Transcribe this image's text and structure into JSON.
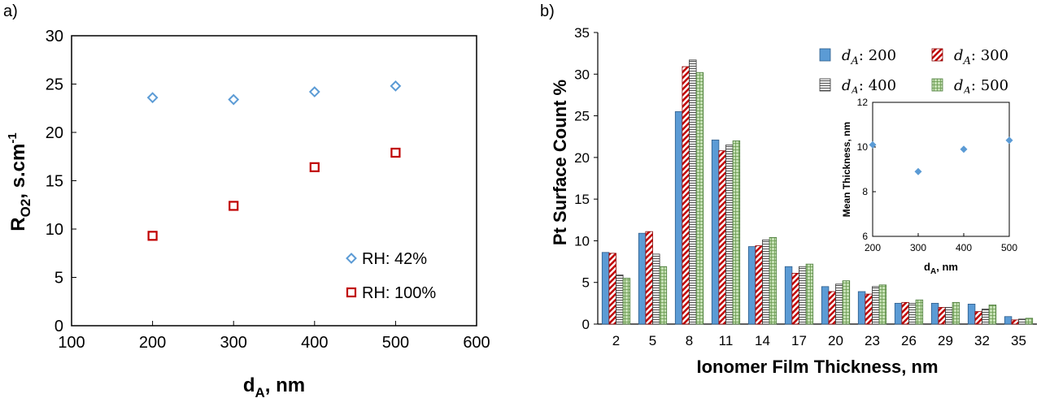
{
  "chart_data": [
    {
      "panel": "a)",
      "type": "scatter",
      "xlabel_main": "d",
      "xlabel_sub": "A",
      "xlabel_rest": ", nm",
      "ylabel_main": "R",
      "ylabel_sub": "O2",
      "ylabel_rest": ", s.cm",
      "ylabel_sup": "-1",
      "xlim": [
        100,
        600
      ],
      "ylim": [
        0,
        30
      ],
      "xticks": [
        100,
        200,
        300,
        400,
        500,
        600
      ],
      "yticks": [
        0,
        5,
        10,
        15,
        20,
        25,
        30
      ],
      "legend_position": "bottom-right",
      "series": [
        {
          "name": "RH: 42%",
          "marker": "diamond",
          "color": "#5B9BD5",
          "x": [
            200,
            300,
            400,
            500
          ],
          "y": [
            23.6,
            23.4,
            24.2,
            24.8
          ]
        },
        {
          "name": "RH: 100%",
          "marker": "square",
          "color": "#C00000",
          "x": [
            200,
            300,
            400,
            500
          ],
          "y": [
            9.3,
            12.4,
            16.4,
            17.9
          ]
        }
      ]
    },
    {
      "panel": "b)",
      "type": "bar",
      "xlabel": "Ionomer Film Thickness, nm",
      "ylabel": "Pt Surface Count %",
      "ylim": [
        0,
        35
      ],
      "yticks": [
        0,
        5,
        10,
        15,
        20,
        25,
        30,
        35
      ],
      "categories": [
        "2",
        "5",
        "8",
        "11",
        "14",
        "17",
        "20",
        "23",
        "26",
        "29",
        "32",
        "35"
      ],
      "legend_position": "top-right",
      "series": [
        {
          "name_main": "d",
          "name_sub": "A",
          "name_rest": ": 200",
          "pattern": "solid-blue",
          "values": [
            8.6,
            10.9,
            25.5,
            22.1,
            9.3,
            6.9,
            4.5,
            3.9,
            2.5,
            2.5,
            2.4,
            0.9
          ]
        },
        {
          "name_main": "d",
          "name_sub": "A",
          "name_rest": ": 300",
          "pattern": "red-diagonal",
          "values": [
            8.5,
            11.1,
            30.9,
            20.8,
            9.4,
            6.1,
            3.9,
            3.6,
            2.6,
            2.0,
            1.5,
            0.5
          ]
        },
        {
          "name_main": "d",
          "name_sub": "A",
          "name_rest": ": 400",
          "pattern": "gray-horizontal",
          "values": [
            5.9,
            8.4,
            31.7,
            21.5,
            10.1,
            6.9,
            4.8,
            4.5,
            2.5,
            2.0,
            1.8,
            0.6
          ]
        },
        {
          "name_main": "d",
          "name_sub": "A",
          "name_rest": ": 500",
          "pattern": "green-grid",
          "values": [
            5.5,
            6.9,
            30.2,
            22.0,
            10.4,
            7.2,
            5.2,
            4.7,
            2.9,
            2.6,
            2.3,
            0.7
          ]
        }
      ],
      "inset": {
        "type": "scatter",
        "xlabel_main": "d",
        "xlabel_sub": "A",
        "xlabel_rest": ", nm",
        "ylabel": "Mean Thickness, nm",
        "xlim": [
          200,
          500
        ],
        "ylim": [
          6,
          12
        ],
        "xticks": [
          200,
          300,
          400,
          500
        ],
        "yticks": [
          6,
          8,
          10,
          12
        ],
        "x": [
          200,
          300,
          400,
          500
        ],
        "y": [
          10.1,
          8.9,
          9.9,
          10.3
        ],
        "color": "#5B9BD5"
      }
    }
  ]
}
